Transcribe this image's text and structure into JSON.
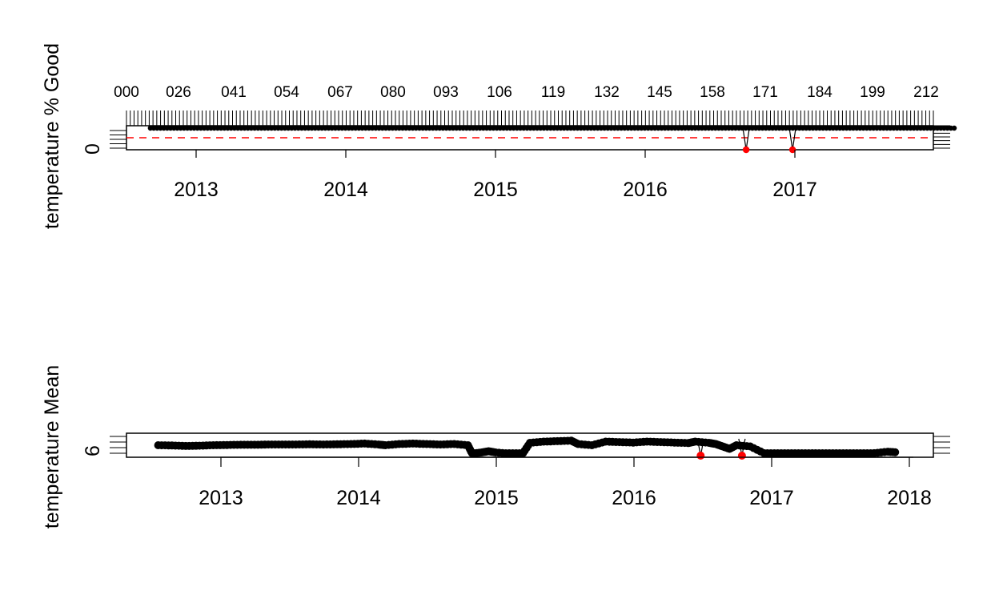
{
  "chart_data": [
    {
      "type": "scatter",
      "ylabel": "temperature % Good",
      "x_tick_labels": [
        "2013",
        "2014",
        "2015",
        "2016",
        "2017"
      ],
      "y_tick_labels": [
        "0"
      ],
      "top_tick_labels": [
        "000",
        "026",
        "041",
        "054",
        "067",
        "080",
        "093",
        "106",
        "119",
        "132",
        "145",
        "158",
        "171",
        "184",
        "199",
        "212"
      ],
      "x_range": [
        2012.5,
        2017.95
      ],
      "threshold_line": {
        "style": "dashed",
        "color": "#ff0000"
      },
      "series": [
        {
          "values_note_free": true,
          "x_start": 2012.55,
          "x_end": 2017.92,
          "y": 100
        }
      ],
      "flagged_points": [
        {
          "x": 2016.53,
          "y": 0
        },
        {
          "x": 2016.84,
          "y": 0
        }
      ],
      "colors": {
        "points": "#000000",
        "flagged": "#ff0000",
        "threshold": "#ff0000"
      }
    },
    {
      "type": "scatter",
      "ylabel": "temperature Mean",
      "x_tick_labels": [
        "2013",
        "2014",
        "2015",
        "2016",
        "2017",
        "2018"
      ],
      "y_tick_labels": [
        "6"
      ],
      "x_range": [
        2012.3,
        2018.1
      ],
      "series": [
        {
          "x": [
            2012.55,
            2012.65,
            2012.75,
            2012.85,
            2012.95,
            2013.05,
            2013.15,
            2013.25,
            2013.35,
            2013.45,
            2013.55,
            2013.65,
            2013.75,
            2013.85,
            2013.95,
            2014.05,
            2014.15,
            2014.2,
            2014.3,
            2014.4,
            2014.5,
            2014.6,
            2014.7,
            2014.8,
            2014.83,
            2014.9,
            2014.95,
            2015.0,
            2015.1,
            2015.2,
            2015.25,
            2015.35,
            2015.45,
            2015.55,
            2015.6,
            2015.7,
            2015.8,
            2015.9,
            2016.0,
            2016.1,
            2016.2,
            2016.3,
            2016.4,
            2016.45,
            2016.55,
            2016.6,
            2016.65,
            2016.7,
            2016.75,
            2016.85,
            2016.95,
            2017.05,
            2017.15,
            2017.25,
            2017.35,
            2017.45,
            2017.55,
            2017.65,
            2017.75,
            2017.85,
            2017.92
          ],
          "y": [
            6.55,
            6.54,
            6.52,
            6.53,
            6.55,
            6.56,
            6.57,
            6.57,
            6.58,
            6.58,
            6.58,
            6.59,
            6.58,
            6.59,
            6.6,
            6.62,
            6.58,
            6.55,
            6.6,
            6.62,
            6.6,
            6.58,
            6.6,
            6.55,
            6.2,
            6.25,
            6.3,
            6.25,
            6.2,
            6.22,
            6.65,
            6.7,
            6.72,
            6.74,
            6.6,
            6.55,
            6.7,
            6.68,
            6.66,
            6.7,
            6.68,
            6.66,
            6.64,
            6.7,
            6.65,
            6.6,
            6.5,
            6.4,
            6.55,
            6.5,
            6.22,
            6.2,
            6.18,
            6.15,
            6.14,
            6.12,
            6.14,
            6.17,
            6.22,
            6.28,
            6.25
          ]
        }
      ],
      "flagged_points": [
        {
          "x": 2016.49,
          "y": 5.9
        },
        {
          "x": 2016.79,
          "y": 5.9
        }
      ],
      "colors": {
        "points": "#000000",
        "flagged": "#ff0000"
      }
    }
  ]
}
